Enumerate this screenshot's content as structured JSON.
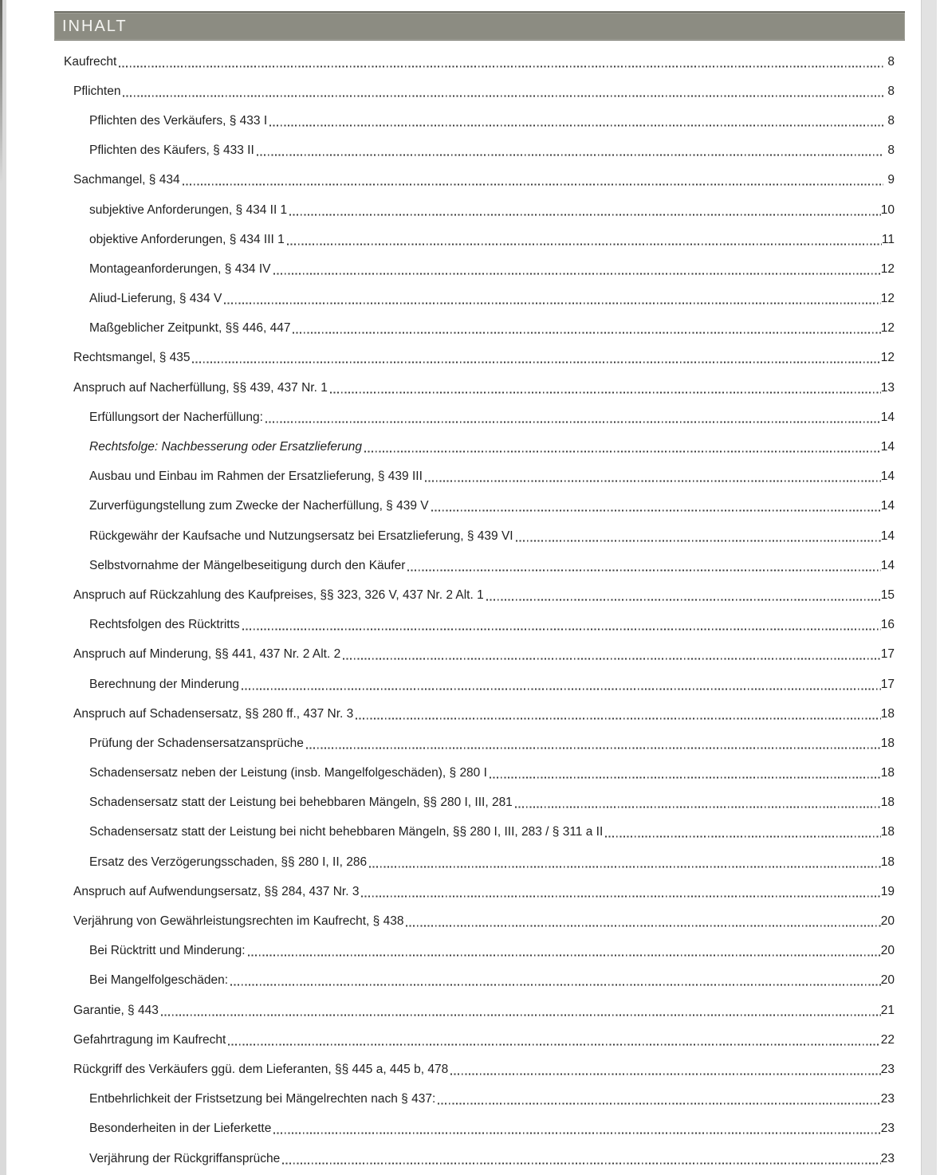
{
  "header": {
    "title": "INHALT"
  },
  "colors": {
    "header_bg": "#8c8c82",
    "header_border": "#6e6e66",
    "header_text": "#f5f5f2",
    "body_text": "#1f1f1f",
    "leader_dots": "#3a3a3a",
    "page_edge": "#dadada"
  },
  "toc": {
    "entries": [
      {
        "label": "Kaufrecht",
        "page": "8",
        "level": 1
      },
      {
        "label": "Pflichten",
        "page": "8",
        "level": 2
      },
      {
        "label": "Pflichten des Verkäufers, § 433 I",
        "page": "8",
        "level": 3
      },
      {
        "label": "Pflichten des Käufers, § 433 II",
        "page": "8",
        "level": 3
      },
      {
        "label": "Sachmangel, § 434",
        "page": "9",
        "level": 2
      },
      {
        "label": "subjektive Anforderungen, § 434 II 1",
        "page": "10",
        "level": 3
      },
      {
        "label": "objektive Anforderungen, § 434 III 1",
        "page": "11",
        "level": 3
      },
      {
        "label": "Montageanforderungen, § 434 IV",
        "page": "12",
        "level": 3
      },
      {
        "label": "Aliud-Lieferung, § 434 V",
        "page": "12",
        "level": 3
      },
      {
        "label": "Maßgeblicher Zeitpunkt, §§ 446, 447",
        "page": "12",
        "level": 3
      },
      {
        "label": "Rechtsmangel, § 435",
        "page": "12",
        "level": 2
      },
      {
        "label": "Anspruch auf Nacherfüllung, §§ 439, 437 Nr. 1",
        "page": "13",
        "level": 2
      },
      {
        "label": "Erfüllungsort der Nacherfüllung:",
        "page": "14",
        "level": 3
      },
      {
        "label": "Rechtsfolge: Nachbesserung oder Ersatzlieferung",
        "page": "14",
        "level": 3,
        "italic": true
      },
      {
        "label": "Ausbau und Einbau im Rahmen der Ersatzlieferung, § 439 III",
        "page": "14",
        "level": 3
      },
      {
        "label": "Zurverfügungstellung zum Zwecke der Nacherfüllung, § 439 V",
        "page": "14",
        "level": 3
      },
      {
        "label": "Rückgewähr der Kaufsache und Nutzungsersatz bei Ersatzlieferung, § 439 VI",
        "page": "14",
        "level": 3
      },
      {
        "label": "Selbstvornahme der Mängelbeseitigung durch den Käufer",
        "page": "14",
        "level": 3
      },
      {
        "label": "Anspruch auf Rückzahlung des Kaufpreises, §§ 323, 326 V, 437 Nr. 2 Alt. 1",
        "page": "15",
        "level": 2
      },
      {
        "label": "Rechtsfolgen des Rücktritts",
        "page": "16",
        "level": 3
      },
      {
        "label": "Anspruch auf Minderung, §§ 441, 437 Nr. 2 Alt. 2",
        "page": "17",
        "level": 2
      },
      {
        "label": "Berechnung der Minderung",
        "page": "17",
        "level": 3
      },
      {
        "label": "Anspruch auf Schadensersatz, §§ 280 ff., 437 Nr. 3",
        "page": "18",
        "level": 2
      },
      {
        "label": "Prüfung der Schadensersatzansprüche",
        "page": "18",
        "level": 3
      },
      {
        "label": "Schadensersatz neben der Leistung (insb. Mangelfolgeschäden), § 280 I",
        "page": "18",
        "level": 3
      },
      {
        "label": "Schadensersatz statt der Leistung bei behebbaren Mängeln, §§ 280 I, III, 281",
        "page": "18",
        "level": 3
      },
      {
        "label": "Schadensersatz statt der Leistung bei nicht behebbaren Mängeln, §§ 280 I, III, 283 / § 311 a II",
        "page": "18",
        "level": 3
      },
      {
        "label": "Ersatz des Verzögerungsschaden, §§ 280 I, II, 286",
        "page": "18",
        "level": 3
      },
      {
        "label": "Anspruch auf Aufwendungsersatz, §§ 284, 437 Nr. 3",
        "page": "19",
        "level": 2
      },
      {
        "label": "Verjährung von Gewährleistungsrechten im Kaufrecht, § 438",
        "page": "20",
        "level": 2
      },
      {
        "label": "Bei Rücktritt und Minderung:",
        "page": "20",
        "level": 3
      },
      {
        "label": "Bei Mangelfolgeschäden:",
        "page": "20",
        "level": 3
      },
      {
        "label": "Garantie, § 443",
        "page": "21",
        "level": 2
      },
      {
        "label": "Gefahrtragung im Kaufrecht",
        "page": "22",
        "level": 2
      },
      {
        "label": "Rückgriff des Verkäufers ggü. dem Lieferanten, §§ 445 a, 445 b, 478",
        "page": "23",
        "level": 2
      },
      {
        "label": "Entbehrlichkeit der Fristsetzung bei Mängelrechten nach § 437:",
        "page": "23",
        "level": 3
      },
      {
        "label": "Besonderheiten in der Lieferkette",
        "page": "23",
        "level": 3
      },
      {
        "label": "Verjährung der Rückgriffansprüche",
        "page": "23",
        "level": 3
      }
    ]
  }
}
